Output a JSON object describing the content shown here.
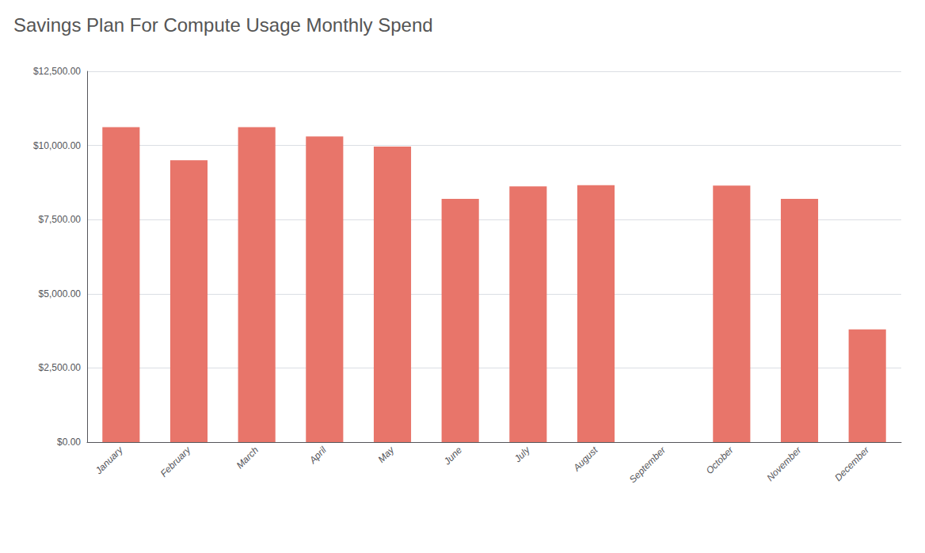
{
  "chart_data": {
    "type": "bar",
    "title": "Savings Plan For Compute Usage Monthly Spend",
    "categories": [
      "January",
      "February",
      "March",
      "April",
      "May",
      "June",
      "July",
      "August",
      "September",
      "October",
      "November",
      "December"
    ],
    "values": [
      10620,
      9500,
      10620,
      10300,
      9960,
      8200,
      8620,
      8660,
      0,
      8650,
      8200,
      3800
    ],
    "color": "#e8756a",
    "ylim": [
      0,
      12500
    ],
    "yticks": [
      {
        "value": 0,
        "label": "$0.00"
      },
      {
        "value": 2500,
        "label": "$2,500.00"
      },
      {
        "value": 5000,
        "label": "$5,000.00"
      },
      {
        "value": 7500,
        "label": "$7,500.00"
      },
      {
        "value": 10000,
        "label": "$10,000.00"
      },
      {
        "value": 12500,
        "label": "$12,500.00"
      }
    ],
    "grid": true
  }
}
